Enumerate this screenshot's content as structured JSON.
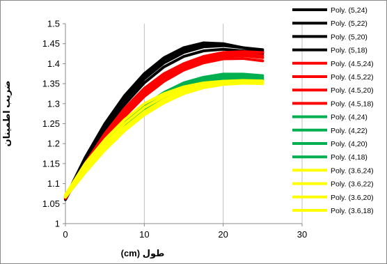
{
  "chart_data": {
    "type": "line",
    "title": "",
    "xlabel": "طول (cm)",
    "ylabel": "ضریب اطمینان",
    "xlim": [
      0,
      30
    ],
    "ylim": [
      1,
      1.5
    ],
    "xticks": [
      0,
      10,
      20,
      30
    ],
    "yticks": [
      1,
      1.05,
      1.1,
      1.15,
      1.2,
      1.25,
      1.3,
      1.35,
      1.4,
      1.45,
      1.5
    ],
    "grid": "vertical-major",
    "legend_position": "right",
    "series": [
      {
        "name": "Poly. (5,24)",
        "color": "#000000",
        "x": [
          0,
          2.5,
          5,
          7.5,
          10,
          12.5,
          15,
          17.5,
          20,
          22.5,
          25
        ],
        "y": [
          1.065,
          1.165,
          1.25,
          1.32,
          1.375,
          1.415,
          1.44,
          1.452,
          1.45,
          1.44,
          1.432
        ]
      },
      {
        "name": "Poly. (5,22)",
        "color": "#000000",
        "x": [
          0,
          2.5,
          5,
          7.5,
          10,
          12.5,
          15,
          17.5,
          20,
          22.5,
          25
        ],
        "y": [
          1.065,
          1.16,
          1.245,
          1.315,
          1.37,
          1.41,
          1.435,
          1.448,
          1.448,
          1.44,
          1.428
        ]
      },
      {
        "name": "Poly. (5,20)",
        "color": "#000000",
        "x": [
          0,
          2.5,
          5,
          7.5,
          10,
          12.5,
          15,
          17.5,
          20,
          22.5,
          25
        ],
        "y": [
          1.062,
          1.155,
          1.238,
          1.308,
          1.362,
          1.402,
          1.428,
          1.442,
          1.445,
          1.44,
          1.435
        ]
      },
      {
        "name": "Poly. (5,18)",
        "color": "#000000",
        "x": [
          0,
          2.5,
          5,
          7.5,
          10,
          12.5,
          15,
          17.5,
          20,
          22.5,
          25
        ],
        "y": [
          1.06,
          1.15,
          1.23,
          1.298,
          1.352,
          1.392,
          1.418,
          1.432,
          1.436,
          1.432,
          1.425
        ]
      },
      {
        "name": "Poly. (4.5,24)",
        "color": "#ff0000",
        "x": [
          0,
          2.5,
          5,
          7.5,
          10,
          12.5,
          15,
          17.5,
          20,
          22.5,
          25
        ],
        "y": [
          1.068,
          1.15,
          1.225,
          1.288,
          1.338,
          1.375,
          1.4,
          1.418,
          1.428,
          1.43,
          1.428
        ]
      },
      {
        "name": "Poly. (4.5,22)",
        "color": "#ff0000",
        "x": [
          0,
          2.5,
          5,
          7.5,
          10,
          12.5,
          15,
          17.5,
          20,
          22.5,
          25
        ],
        "y": [
          1.066,
          1.146,
          1.22,
          1.282,
          1.332,
          1.37,
          1.396,
          1.414,
          1.424,
          1.425,
          1.42
        ]
      },
      {
        "name": "Poly. (4.5,20)",
        "color": "#ff0000",
        "x": [
          0,
          2.5,
          5,
          7.5,
          10,
          12.5,
          15,
          17.5,
          20,
          22.5,
          25
        ],
        "y": [
          1.065,
          1.142,
          1.215,
          1.276,
          1.326,
          1.364,
          1.39,
          1.408,
          1.418,
          1.42,
          1.415
        ]
      },
      {
        "name": "Poly. (4.5,18)",
        "color": "#ff0000",
        "x": [
          0,
          2.5,
          5,
          7.5,
          10,
          12.5,
          15,
          17.5,
          20,
          22.5,
          25
        ],
        "y": [
          1.063,
          1.138,
          1.208,
          1.268,
          1.318,
          1.356,
          1.384,
          1.402,
          1.412,
          1.413,
          1.407
        ]
      },
      {
        "name": "Poly. (4,24)",
        "color": "#00b050",
        "x": [
          0,
          2.5,
          5,
          7.5,
          10,
          12.5,
          15,
          17.5,
          20,
          22.5,
          25
        ],
        "y": [
          1.07,
          1.14,
          1.2,
          1.252,
          1.295,
          1.328,
          1.352,
          1.366,
          1.374,
          1.374,
          1.37
        ]
      },
      {
        "name": "Poly. (4,22)",
        "color": "#00b050",
        "x": [
          0,
          2.5,
          5,
          7.5,
          10,
          12.5,
          15,
          17.5,
          20,
          22.5,
          25
        ],
        "y": [
          1.068,
          1.136,
          1.196,
          1.248,
          1.29,
          1.323,
          1.347,
          1.362,
          1.37,
          1.37,
          1.366
        ]
      },
      {
        "name": "Poly. (4,20)",
        "color": "#00b050",
        "x": [
          0,
          2.5,
          5,
          7.5,
          10,
          12.5,
          15,
          17.5,
          20,
          22.5,
          25
        ],
        "y": [
          1.067,
          1.132,
          1.19,
          1.242,
          1.284,
          1.318,
          1.342,
          1.357,
          1.366,
          1.367,
          1.362
        ]
      },
      {
        "name": "Poly. (4,18)",
        "color": "#00b050",
        "x": [
          0,
          2.5,
          5,
          7.5,
          10,
          12.5,
          15,
          17.5,
          20,
          22.5,
          25
        ],
        "y": [
          1.066,
          1.128,
          1.185,
          1.236,
          1.278,
          1.312,
          1.336,
          1.352,
          1.361,
          1.363,
          1.359
        ]
      },
      {
        "name": "Poly. (3.6,24)",
        "color": "#ffff00",
        "x": [
          0,
          2.5,
          5,
          7.5,
          10,
          12.5,
          15,
          17.5,
          20,
          22.5,
          25
        ],
        "y": [
          1.072,
          1.15,
          1.21,
          1.26,
          1.3,
          1.325,
          1.342,
          1.352,
          1.356,
          1.356,
          1.354
        ]
      },
      {
        "name": "Poly. (3.6,22)",
        "color": "#ffff00",
        "x": [
          0,
          2.5,
          5,
          7.5,
          10,
          12.5,
          15,
          17.5,
          20,
          22.5,
          25
        ],
        "y": [
          1.07,
          1.142,
          1.2,
          1.25,
          1.29,
          1.318,
          1.338,
          1.35,
          1.356,
          1.358,
          1.357
        ]
      },
      {
        "name": "Poly. (3.6,20)",
        "color": "#ffff00",
        "x": [
          0,
          2.5,
          5,
          7.5,
          10,
          12.5,
          15,
          17.5,
          20,
          22.5,
          25
        ],
        "y": [
          1.068,
          1.135,
          1.192,
          1.24,
          1.28,
          1.31,
          1.332,
          1.346,
          1.354,
          1.356,
          1.354
        ]
      },
      {
        "name": "Poly. (3.6,18)",
        "color": "#ffff00",
        "x": [
          0,
          2.5,
          5,
          7.5,
          10,
          12.5,
          15,
          17.5,
          20,
          22.5,
          25
        ],
        "y": [
          1.066,
          1.128,
          1.184,
          1.232,
          1.272,
          1.302,
          1.325,
          1.34,
          1.348,
          1.351,
          1.35
        ]
      }
    ]
  }
}
